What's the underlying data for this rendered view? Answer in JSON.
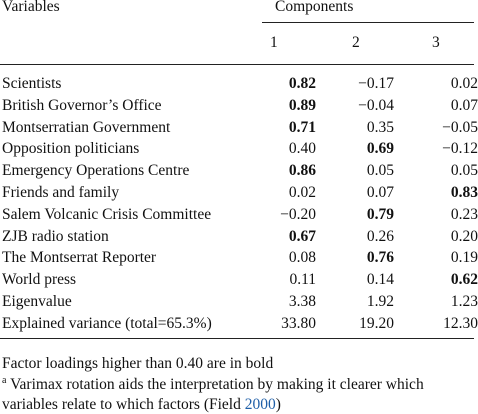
{
  "table": {
    "header": {
      "variables": "Variables",
      "components": "Components",
      "numbers": [
        "1",
        "2",
        "3"
      ]
    },
    "rows": [
      {
        "label": "Scientists",
        "values": [
          "0.82",
          "−0.17",
          "0.02"
        ],
        "bold": [
          true,
          false,
          false
        ]
      },
      {
        "label": "British Governor’s Office",
        "values": [
          "0.89",
          "−0.04",
          "0.07"
        ],
        "bold": [
          true,
          false,
          false
        ]
      },
      {
        "label": "Montserratian Government",
        "values": [
          "0.71",
          "0.35",
          "−0.05"
        ],
        "bold": [
          true,
          false,
          false
        ]
      },
      {
        "label": "Opposition politicians",
        "values": [
          "0.40",
          "0.69",
          "−0.12"
        ],
        "bold": [
          false,
          true,
          false
        ]
      },
      {
        "label": "Emergency Operations Centre",
        "values": [
          "0.86",
          "0.05",
          "0.05"
        ],
        "bold": [
          true,
          false,
          false
        ]
      },
      {
        "label": "Friends and family",
        "values": [
          "0.02",
          "0.07",
          "0.83"
        ],
        "bold": [
          false,
          false,
          true
        ]
      },
      {
        "label": "Salem Volcanic Crisis Committee",
        "values": [
          "−0.20",
          "0.79",
          "0.23"
        ],
        "bold": [
          false,
          true,
          false
        ]
      },
      {
        "label": "ZJB radio station",
        "values": [
          "0.67",
          "0.26",
          "0.20"
        ],
        "bold": [
          true,
          false,
          false
        ]
      },
      {
        "label": "The Montserrat Reporter",
        "values": [
          "0.08",
          "0.76",
          "0.19"
        ],
        "bold": [
          false,
          true,
          false
        ]
      },
      {
        "label": "World press",
        "values": [
          "0.11",
          "0.14",
          "0.62"
        ],
        "bold": [
          false,
          false,
          true
        ]
      },
      {
        "label": "Eigenvalue",
        "values": [
          "3.38",
          "1.92",
          "1.23"
        ],
        "bold": [
          false,
          false,
          false
        ]
      },
      {
        "label": "Explained variance (total=65.3%)",
        "values": [
          "33.80",
          "19.20",
          "12.30"
        ],
        "bold": [
          false,
          false,
          false
        ]
      }
    ]
  },
  "notes": [
    "Factor loadings higher than 0.40 are in bold",
    {
      "mark": "a",
      "text": "Varimax rotation aids the interpretation by making it clearer which"
    },
    {
      "text": "variables relate to which factors (Field ",
      "cite": "2000",
      "close": ")"
    }
  ]
}
